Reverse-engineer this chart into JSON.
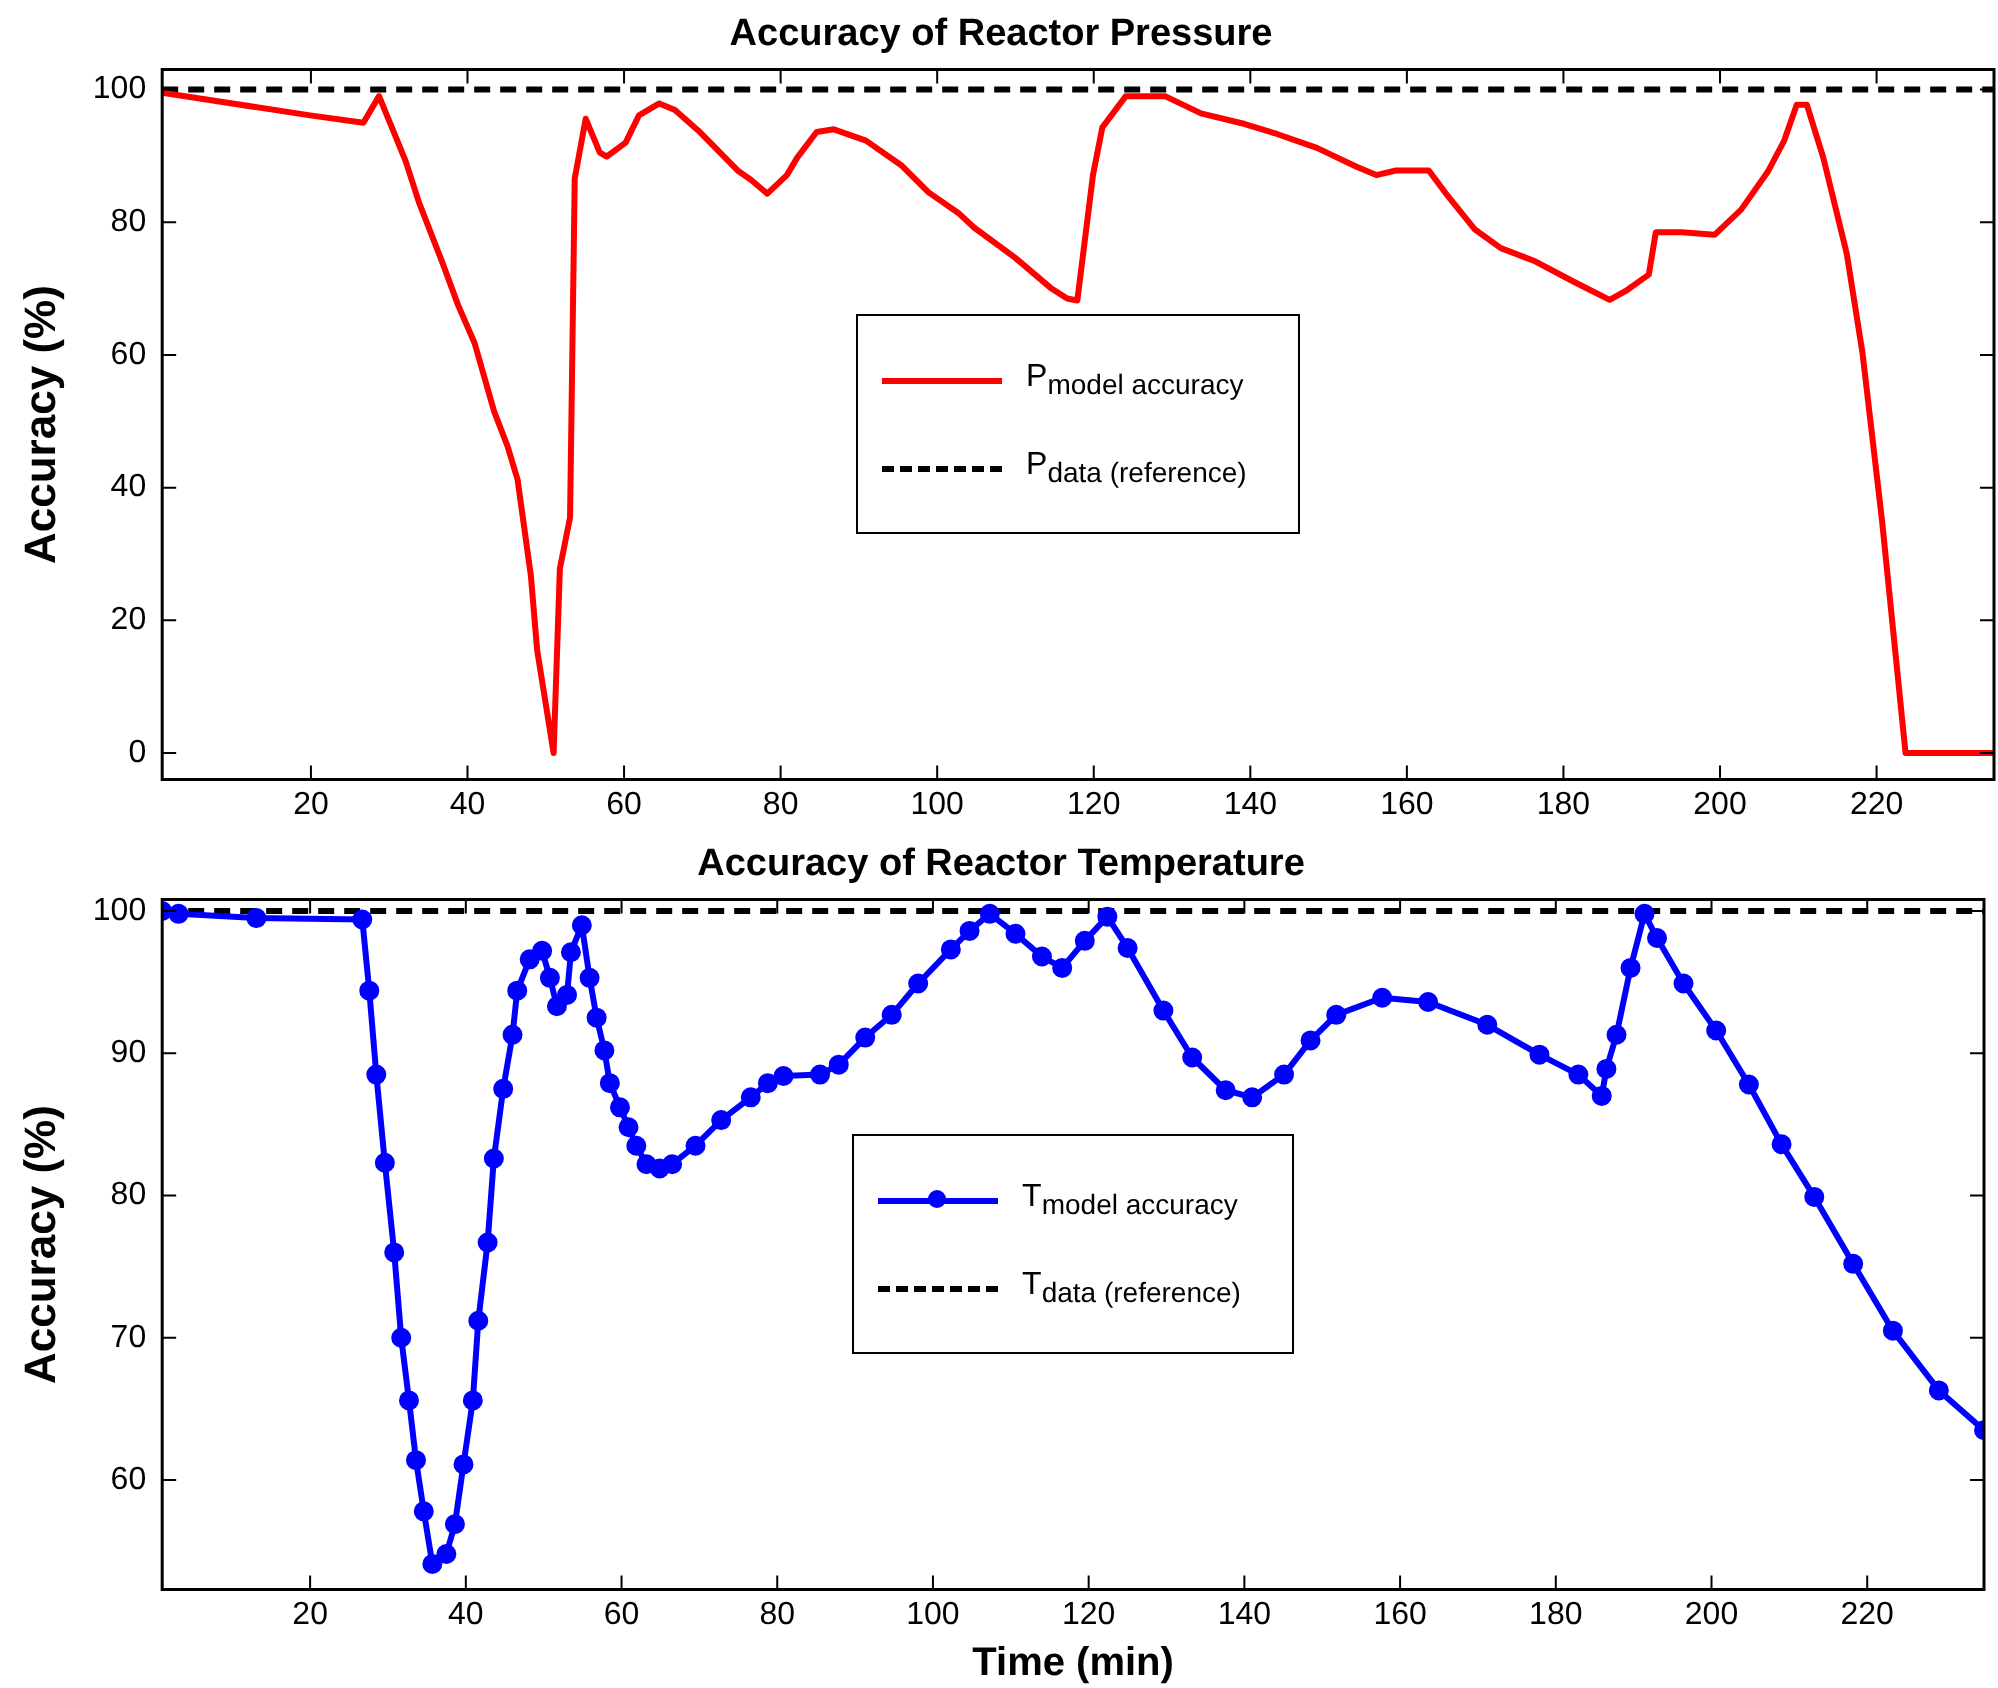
{
  "chart_data": [
    {
      "type": "line",
      "title": "Accuracy of Reactor Pressure",
      "ylabel": "Accuracy (%)",
      "xlim": [
        1,
        235
      ],
      "xticks": [
        20,
        40,
        60,
        80,
        100,
        120,
        140,
        160,
        180,
        200,
        220
      ],
      "ylim": [
        -4,
        103
      ],
      "yticks": [
        0,
        20,
        40,
        60,
        80,
        100
      ],
      "grid": false,
      "legend": "center",
      "series": [
        {
          "name": "P$_{model accuracy}$",
          "color": "#ff0000",
          "marker": "none",
          "line_style": "solid",
          "x": [
            1,
            19.9,
            26.7,
            28.7,
            32.1,
            33.8,
            36.7,
            38.8,
            40.9,
            43.4,
            45.1,
            46.4,
            48.1,
            48.9,
            51.0,
            51.8,
            53.1,
            53.7,
            55.1,
            56.9,
            57.8,
            60.2,
            61.9,
            64.5,
            66.5,
            69.5,
            74.5,
            76.2,
            78.3,
            80.8,
            82.1,
            84.6,
            86.8,
            90.9,
            95.5,
            98.9,
            102.7,
            104.7,
            109.9,
            114.5,
            116.6,
            117.9,
            119.9,
            121.1,
            124.1,
            129.1,
            133.7,
            139.3,
            143.4,
            148.5,
            153.5,
            156.1,
            158.6,
            162.8,
            165.2,
            168.7,
            172,
            176.2,
            181.2,
            185.9,
            187.9,
            190.9,
            191.8,
            195.1,
            199.3,
            202.7,
            206.1,
            208.2,
            209.8,
            211.1,
            213.2,
            216.2,
            218.2,
            220.7,
            223.7,
            235
          ],
          "values": [
            99.5,
            96.1,
            95,
            99,
            89.2,
            83,
            74.2,
            67.5,
            61.8,
            51.5,
            46.3,
            41.2,
            26.7,
            15.5,
            0,
            27.8,
            35.5,
            86.6,
            95.6,
            90.5,
            89.9,
            92,
            96.1,
            97.9,
            96.9,
            93.8,
            87.8,
            86.4,
            84.3,
            87.1,
            89.7,
            93.6,
            94,
            92.3,
            88.5,
            84.5,
            81.4,
            79.2,
            74.7,
            70.1,
            68.5,
            68.2,
            87.1,
            94.3,
            99,
            99,
            96.4,
            94.8,
            93.3,
            91.2,
            88.4,
            87.1,
            87.8,
            87.8,
            84,
            78.9,
            76.1,
            74.2,
            71.1,
            68.3,
            69.6,
            72.1,
            78.5,
            78.5,
            78.1,
            81.9,
            87.6,
            92.3,
            97.7,
            97.7,
            89.7,
            75.2,
            60.3,
            35,
            0,
            0
          ]
        },
        {
          "name": "P$_{data (reference)}$",
          "color": "#000000",
          "marker": "none",
          "line_style": "dashed",
          "x": [
            1,
            235
          ],
          "values": [
            100,
            100
          ]
        }
      ]
    },
    {
      "type": "line",
      "title": "Accuracy of Reactor Temperature",
      "xlabel": "Time (min)",
      "ylabel": "Accuracy (%)",
      "xlim": [
        1,
        235
      ],
      "xticks": [
        20,
        40,
        60,
        80,
        100,
        120,
        140,
        160,
        180,
        200,
        220
      ],
      "ylim": [
        52.3,
        100.8
      ],
      "yticks": [
        60,
        70,
        80,
        90,
        100
      ],
      "grid": false,
      "legend": "center",
      "series": [
        {
          "name": "T$_{model accuracy}$",
          "color": "#0000ff",
          "marker": "circle",
          "line_style": "solid",
          "x": [
            1,
            3.1,
            13.1,
            26.7,
            27.6,
            28.5,
            29.6,
            30.8,
            31.7,
            32.7,
            33.6,
            34.6,
            35.7,
            37.5,
            38.6,
            39.7,
            40.9,
            41.6,
            42.8,
            43.6,
            44.8,
            46,
            46.6,
            48.2,
            49.8,
            50.8,
            51.7,
            53,
            53.5,
            54.9,
            55.9,
            56.8,
            57.8,
            58.5,
            59.8,
            60.9,
            61.9,
            63.2,
            64.9,
            66.5,
            69.5,
            72.8,
            76.6,
            78.8,
            80.8,
            85.5,
            87.9,
            91.3,
            94.7,
            98.1,
            102.3,
            104.7,
            107.3,
            110.6,
            114,
            116.6,
            119.5,
            122.4,
            125,
            129.6,
            133.3,
            137.6,
            141,
            145.1,
            148.5,
            151.8,
            157.7,
            163.6,
            171.2,
            177.9,
            182.9,
            185.9,
            186.5,
            187.8,
            189.6,
            191.4,
            193,
            196.4,
            200.6,
            204.8,
            209,
            213.2,
            218.2,
            223.3,
            229.2,
            235
          ],
          "values": [
            100,
            99.8,
            99.5,
            99.4,
            94.4,
            88.5,
            82.3,
            76,
            70,
            65.6,
            61.4,
            57.8,
            54.1,
            54.8,
            56.9,
            61.1,
            65.6,
            71.2,
            76.7,
            82.6,
            87.5,
            91.3,
            94.4,
            96.6,
            97.2,
            95.3,
            93.3,
            94.1,
            97.1,
            99,
            95.3,
            92.5,
            90.2,
            87.9,
            86.2,
            84.8,
            83.5,
            82.2,
            81.9,
            82.2,
            83.5,
            85.3,
            86.9,
            87.9,
            88.4,
            88.5,
            89.2,
            91.1,
            92.7,
            94.9,
            97.3,
            98.6,
            99.8,
            98.4,
            96.8,
            96,
            97.9,
            99.6,
            97.4,
            93,
            89.7,
            87.4,
            86.9,
            88.5,
            90.9,
            92.7,
            93.9,
            93.6,
            92,
            89.9,
            88.5,
            87,
            88.9,
            91.3,
            96,
            99.8,
            98.1,
            94.9,
            91.6,
            87.8,
            83.6,
            79.9,
            75.2,
            70.5,
            66.3,
            63.5
          ]
        },
        {
          "name": "T$_{data (reference)}$",
          "color": "#000000",
          "marker": "none",
          "line_style": "dashed",
          "x": [
            1,
            235
          ],
          "values": [
            100,
            100
          ]
        }
      ]
    }
  ]
}
